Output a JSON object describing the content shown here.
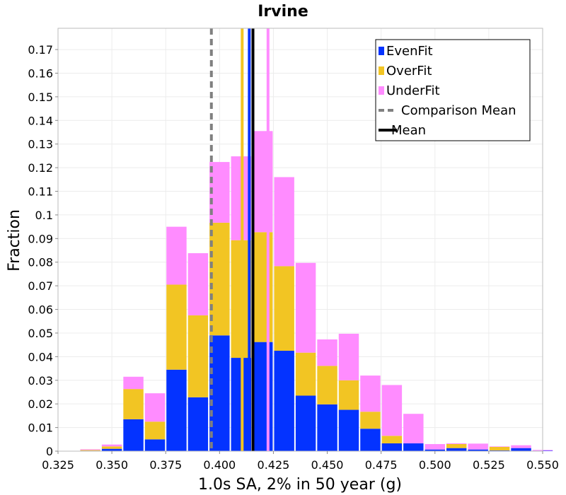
{
  "chart_data": {
    "type": "bar",
    "stacked": true,
    "title": "Irvine",
    "xlabel": "1.0s SA, 2% in 50 year (g)",
    "ylabel": "Fraction",
    "xlim": [
      0.325,
      0.55
    ],
    "ylim": [
      0,
      0.179
    ],
    "bin_width": 0.01,
    "x_ticks": [
      "0.325",
      "0.350",
      "0.375",
      "0.400",
      "0.425",
      "0.450",
      "0.475",
      "0.500",
      "0.525",
      "0.550"
    ],
    "y_ticks": [
      "0",
      "0.01",
      "0.02",
      "0.03",
      "0.04",
      "0.05",
      "0.06",
      "0.07",
      "0.08",
      "0.09",
      "0.1",
      "0.11",
      "0.12",
      "0.13",
      "0.14",
      "0.15",
      "0.16",
      "0.17"
    ],
    "grid": true,
    "legend_position": "top-right",
    "bin_centers": [
      0.33,
      0.34,
      0.35,
      0.36,
      0.37,
      0.38,
      0.39,
      0.4,
      0.41,
      0.42,
      0.43,
      0.44,
      0.45,
      0.46,
      0.47,
      0.48,
      0.49,
      0.5,
      0.51,
      0.52,
      0.53,
      0.54,
      0.55
    ],
    "series": [
      {
        "name": "EvenFit",
        "color": "#0433ff",
        "values": [
          0.0,
          0.0002,
          0.001,
          0.0135,
          0.005,
          0.0345,
          0.0228,
          0.049,
          0.0395,
          0.0462,
          0.0425,
          0.0235,
          0.0198,
          0.0175,
          0.0095,
          0.0033,
          0.0033,
          0.0007,
          0.0013,
          0.0007,
          0.0003,
          0.0013,
          0.0002
        ]
      },
      {
        "name": "OverFit",
        "color": "#f2c523",
        "values": [
          0.0,
          0.0003,
          0.001,
          0.0128,
          0.0075,
          0.036,
          0.0347,
          0.0477,
          0.0498,
          0.0465,
          0.0358,
          0.0182,
          0.0163,
          0.0125,
          0.0072,
          0.0032,
          0.0,
          0.0,
          0.0017,
          0.0,
          0.0015,
          0.0,
          0.0
        ]
      },
      {
        "name": "UnderFit",
        "color": "#ff8cff",
        "values": [
          0.0,
          0.0003,
          0.0008,
          0.0052,
          0.012,
          0.0245,
          0.0263,
          0.0257,
          0.0355,
          0.0428,
          0.0377,
          0.038,
          0.0112,
          0.0197,
          0.0153,
          0.0215,
          0.0125,
          0.0023,
          0.0003,
          0.0025,
          0.0002,
          0.0012,
          0.0003
        ]
      }
    ],
    "vertical_lines": [
      {
        "name": "Comparison Mean",
        "x": 0.3962,
        "color": "#808080",
        "style": "dashed"
      },
      {
        "name": "Mean",
        "x": 0.4155,
        "color": "#000000",
        "style": "solid"
      },
      {
        "name": "EvenFit mean",
        "x": 0.4138,
        "color": "#0433ff",
        "style": "solid"
      },
      {
        "name": "OverFit mean",
        "x": 0.4105,
        "color": "#f2c523",
        "style": "solid"
      },
      {
        "name": "UnderFit mean",
        "x": 0.4225,
        "color": "#ff8cff",
        "style": "solid"
      }
    ],
    "legend": [
      {
        "label": "EvenFit",
        "color": "#0433ff",
        "kind": "bar"
      },
      {
        "label": "OverFit",
        "color": "#f2c523",
        "kind": "bar"
      },
      {
        "label": "UnderFit",
        "color": "#ff8cff",
        "kind": "bar"
      },
      {
        "label": "Comparison Mean",
        "color": "#808080",
        "kind": "dashed"
      },
      {
        "label": "Mean",
        "color": "#000000",
        "kind": "solid"
      }
    ]
  }
}
